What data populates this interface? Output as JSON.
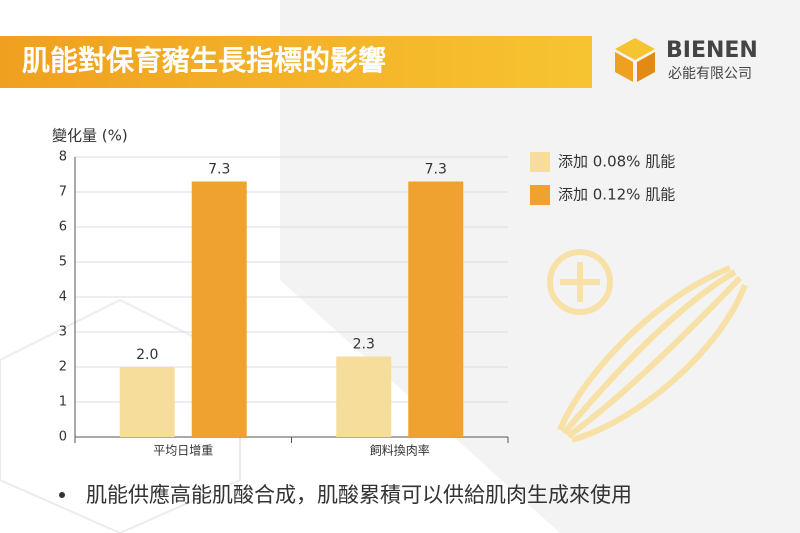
{
  "header": {
    "title": "肌能對保育豬生長指標的影響",
    "brand": "BIENEN",
    "company": "必能有限公司"
  },
  "chart_data": {
    "type": "bar",
    "ylabel": "變化量 (%)",
    "categories": [
      "平均日增重",
      "飼料換肉率"
    ],
    "series": [
      {
        "name": "添加 0.08% 肌能",
        "color": "#f6dd9c",
        "values": [
          2.0,
          2.3
        ],
        "value_labels": [
          "2.0",
          "2.3"
        ]
      },
      {
        "name": "添加 0.12% 肌能",
        "color": "#f0a230",
        "values": [
          7.3,
          7.3
        ],
        "value_labels": [
          "7.3",
          "7.3"
        ]
      }
    ],
    "ylim": [
      0,
      8
    ],
    "yticks": [
      0,
      1,
      2,
      3,
      4,
      5,
      6,
      7,
      8
    ],
    "grid": true
  },
  "footer": {
    "bullet": "肌能供應高能肌酸合成，肌酸累積可以供給肌肉生成來使用"
  }
}
